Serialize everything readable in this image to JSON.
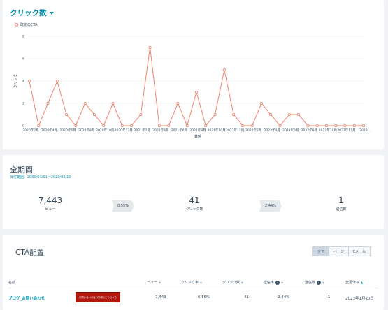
{
  "chart_card": {
    "title": "クリック数",
    "legend_label": "既定のCTA"
  },
  "chart_data": {
    "type": "line",
    "xlabel": "日付",
    "ylabel": "クリック",
    "ylim": [
      0,
      8
    ],
    "yticks": [
      "0",
      "2",
      "4",
      "6",
      "8"
    ],
    "grid": true,
    "legend": "top-left",
    "series_color": "#f2836b",
    "xtick_labels": [
      "2020年2月",
      "2020年4月",
      "2020年6月",
      "2020年8月",
      "2020年10月",
      "2020年12月",
      "2021年2月",
      "2021年4月",
      "2021年6月",
      "2021年8月",
      "2021年10月",
      "2021年12月",
      "2022年2月",
      "2022年4月",
      "2022年6月",
      "2022年8月",
      "2022年10月",
      "2022年12月",
      "2023..."
    ],
    "series": [
      {
        "name": "既定のCTA",
        "values": [
          4,
          0,
          2,
          4,
          1,
          0,
          2,
          1,
          0,
          2,
          0,
          0,
          1,
          7,
          0,
          0,
          2,
          0,
          3,
          0,
          1,
          5,
          1,
          0,
          0,
          2,
          1,
          0,
          1,
          1,
          0,
          0,
          0,
          0,
          0,
          0,
          0
        ]
      }
    ]
  },
  "summary": {
    "title": "全期間",
    "date_range": "日付範囲：2000/01/01〜2023/02/10",
    "views_value": "7,443",
    "views_label": "ビュー",
    "click_rate": "0.55%",
    "clicks_value": "41",
    "clicks_label": "クリック数",
    "submit_rate": "2.44%",
    "submissions_value": "1",
    "submissions_label": "送信数"
  },
  "table": {
    "title": "CTA配置",
    "filters": [
      "全て",
      "ページ",
      "Eメール"
    ],
    "columns": {
      "name": "名前",
      "views": "ビュー",
      "click_rate": "クリック率",
      "clicks": "クリック数",
      "submit_rate": "送信率",
      "submissions": "送信数",
      "modified": "変更済み"
    },
    "rows": [
      {
        "name": "ブログ_お問い合わせ",
        "cta_text": "お問い合わせはお気軽にこちらから",
        "views": "7,443",
        "click_rate": "0.55%",
        "clicks": "41",
        "submit_rate": "2.44%",
        "submissions": "1",
        "modified": "2023年1月20日"
      }
    ]
  }
}
